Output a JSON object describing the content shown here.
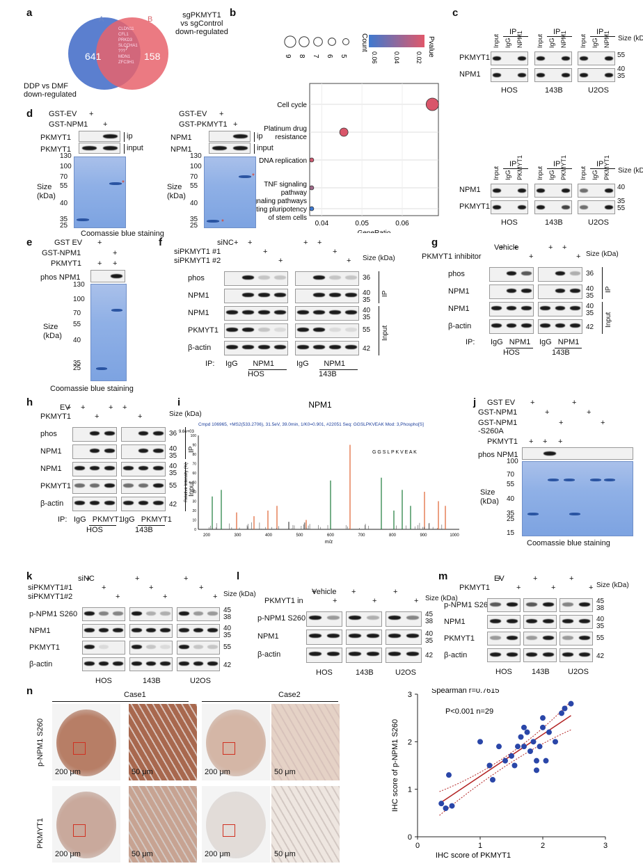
{
  "panels": {
    "a": {
      "letter": "a",
      "setA": "A",
      "setB": "B",
      "countA": "641",
      "countB": "158",
      "overlap": "7",
      "genes": [
        "CLDN11",
        "CFL1",
        "PRKD3",
        "SLCCHA1",
        "???",
        "MDN1",
        "ZFC3H1"
      ],
      "labelRight": "sgPKMYT1\nvs sgControl\ndown-regulated",
      "labelLeft": "DDP vs DMF\ndown-regulated"
    },
    "b": {
      "letter": "b",
      "countLabel": "Count",
      "pvalueLabel": "Pvalue",
      "pTicks": [
        "0.06",
        "0.04",
        "0.02"
      ],
      "countTicks": [
        "9",
        "8",
        "7",
        "6",
        "5"
      ],
      "terms": [
        "Cell cycle",
        "Platinum drug resistance",
        "DNA replication",
        "TNF signaling pathway",
        "Signaling pathways regulating pluripotency of stem cells"
      ],
      "xTicks": [
        "0.04",
        "0.05",
        "0.06"
      ],
      "xlabel": "GeneRatio"
    },
    "c": {
      "letter": "c",
      "ip": "IP",
      "input": "Input",
      "igg": "IgG",
      "npm1": "NPM1",
      "pkmyt1": "PKMYT1",
      "size": "Size (kDa)",
      "cells": [
        "HOS",
        "143B",
        "U2OS"
      ],
      "mw": [
        "55",
        "40",
        "35"
      ]
    },
    "d": {
      "letter": "d",
      "gstev": "GST-EV",
      "gstnpm1": "GST-NPM1",
      "gstpkmyt1": "GST-PKMYT1",
      "ip": "ip",
      "input": "input",
      "pkmyt1": "PKMYT1",
      "npm1": "NPM1",
      "size": "Size (kDa)",
      "caption": "Coomassie blue staining",
      "mw": [
        "130",
        "100",
        "70",
        "55",
        "40",
        "35",
        "25"
      ],
      "plus": "+"
    },
    "e": {
      "letter": "e",
      "gstev": "GST EV",
      "gstnpm1": "GST-NPM1",
      "pkmyt1": "PKMYT1",
      "phos": "phos NPM1",
      "mw": [
        "130",
        "100",
        "70",
        "55",
        "40",
        "35",
        "25"
      ],
      "size": "Size (kDa)",
      "caption": "Coomassie blue staining"
    },
    "f": {
      "letter": "f",
      "sinc": "siNC",
      "si1": "siPKMYT1 #1",
      "si2": "siPKMYT1 #2",
      "rows": [
        "phos",
        "NPM1",
        "NPM1",
        "PKMYT1",
        "β-actin"
      ],
      "mw": [
        "36",
        "40",
        "35",
        "40",
        "35",
        "55",
        "42"
      ],
      "ip": "IP",
      "input": "Input",
      "iplabel": "IP:",
      "igg": "IgG",
      "npm1": "NPM1",
      "cells": [
        "HOS",
        "143B"
      ],
      "size": "Size (kDa)"
    },
    "g": {
      "letter": "g",
      "vehicle": "Vehicle",
      "inhibitor": "PKMYT1 inhibitor",
      "rows": [
        "phos",
        "NPM1",
        "NPM1",
        "β-actin"
      ],
      "mw": [
        "36",
        "40",
        "35",
        "40",
        "35",
        "42"
      ],
      "ip": "IP",
      "input": "Input",
      "iplabel": "IP:",
      "igg": "IgG",
      "npm1": "NPM1",
      "cells": [
        "HOS",
        "143B"
      ],
      "size": "Size (kDa)"
    },
    "h": {
      "letter": "h",
      "ev": "EV",
      "pkmyt1": "PKMYT1",
      "rows": [
        "phos",
        "NPM1",
        "NPM1",
        "PKMYT1",
        "β-actin"
      ],
      "mw": [
        "36",
        "40",
        "35",
        "40",
        "35",
        "55",
        "42"
      ],
      "ip": "IP",
      "input": "Input",
      "iplabel": "IP:",
      "igg": "IgG",
      "cells": [
        "HOS",
        "143B"
      ],
      "size": "Size (kDa)"
    },
    "i": {
      "letter": "i",
      "title": "NPM1",
      "header": "Cmpd 106965, +MS2(533.2706), 31.5eV, 39.0min, 1/K0=0.901, #22051",
      "seq": "Seq: GGSLPKVEAK",
      "mod": "Mod: 3,Phospho[S]",
      "peptide": "G G S L P K V E A K",
      "ylabel": "Relative Intensity (%)",
      "xlabel": "m/z",
      "xTicks": [
        "200",
        "300",
        "400",
        "500",
        "600",
        "700",
        "800",
        "900",
        "1000"
      ],
      "yTicks": [
        "100",
        "90",
        "80",
        "70",
        "60",
        "50",
        "40",
        "30",
        "20",
        "10",
        "0"
      ],
      "scale": "9.6e+03"
    },
    "j": {
      "letter": "j",
      "gstev": "GST EV",
      "gstnpm1": "GST-NPM1",
      "gstnpm1s": "GST-NPM1\n-S260A",
      "pkmyt1": "PKMYT1",
      "phos": "phos NPM1",
      "mw": [
        "100",
        "70",
        "55",
        "40",
        "35",
        "25",
        "15"
      ],
      "size": "Size (kDa)",
      "caption": "Coomassie blue staining"
    },
    "k": {
      "letter": "k",
      "sinc": "siNC",
      "si1": "siPKMYT1#1",
      "si2": "siPKMYT1#2",
      "rows": [
        "p-NPM1 S260",
        "NPM1",
        "PKMYT1",
        "β-actin"
      ],
      "mw": [
        "45",
        "38",
        "40",
        "35",
        "55",
        "42"
      ],
      "cells": [
        "HOS",
        "143B",
        "U2OS"
      ],
      "size": "Size (kDa)"
    },
    "l": {
      "letter": "l",
      "vehicle": "Vehicle",
      "inhibitor": "PKMYT1 in",
      "rows": [
        "p-NPM1 S260",
        "NPM1",
        "β-actin"
      ],
      "mw": [
        "45",
        "38",
        "40",
        "35",
        "42"
      ],
      "cells": [
        "HOS",
        "143B",
        "U2OS"
      ],
      "size": "Size (kDa)"
    },
    "m": {
      "letter": "m",
      "ev": "EV",
      "pkmyt1": "PKMYT1",
      "rows": [
        "p-NPM1 S260",
        "NPM1",
        "PKMYT1",
        "β-actin"
      ],
      "mw": [
        "45",
        "38",
        "40",
        "35",
        "55",
        "42"
      ],
      "cells": [
        "HOS",
        "143B",
        "U2OS"
      ],
      "size": "Size (kDa)"
    },
    "n": {
      "letter": "n",
      "case1": "Case1",
      "case2": "Case2",
      "row1": "p-NPM1 S260",
      "row2": "PKMYT1",
      "scale1": "200 μm",
      "scale2": "50 μm"
    }
  },
  "chart_data": {
    "type": "scatter",
    "title": "",
    "xlabel": "IHC score of PKMYT1",
    "ylabel": "IHC score of p-NPM1 S260",
    "xlim": [
      0,
      3
    ],
    "ylim": [
      0,
      3
    ],
    "xTicks": [
      "0",
      "1",
      "2",
      "3"
    ],
    "yTicks": [
      "0",
      "1",
      "2",
      "3"
    ],
    "annotations": [
      "Spearman r=0.7615",
      "P<0.001  n=29"
    ],
    "points": [
      [
        0.38,
        0.7
      ],
      [
        0.45,
        0.6
      ],
      [
        0.5,
        1.3
      ],
      [
        0.55,
        0.65
      ],
      [
        1.0,
        2.0
      ],
      [
        1.15,
        1.5
      ],
      [
        1.2,
        1.2
      ],
      [
        1.3,
        1.9
      ],
      [
        1.4,
        1.6
      ],
      [
        1.5,
        1.7
      ],
      [
        1.55,
        1.5
      ],
      [
        1.6,
        1.9
      ],
      [
        1.65,
        2.1
      ],
      [
        1.7,
        2.3
      ],
      [
        1.75,
        2.2
      ],
      [
        1.8,
        1.8
      ],
      [
        1.85,
        2.0
      ],
      [
        1.9,
        1.6
      ],
      [
        1.9,
        1.4
      ],
      [
        1.95,
        1.9
      ],
      [
        2.0,
        2.5
      ],
      [
        2.0,
        2.3
      ],
      [
        2.05,
        1.6
      ],
      [
        2.1,
        2.2
      ],
      [
        2.2,
        2.0
      ],
      [
        2.3,
        2.6
      ],
      [
        2.35,
        2.7
      ],
      [
        2.45,
        2.8
      ],
      [
        1.7,
        1.9
      ]
    ],
    "colors": {
      "points": "#2a46a8",
      "fit": "#b22222"
    }
  }
}
